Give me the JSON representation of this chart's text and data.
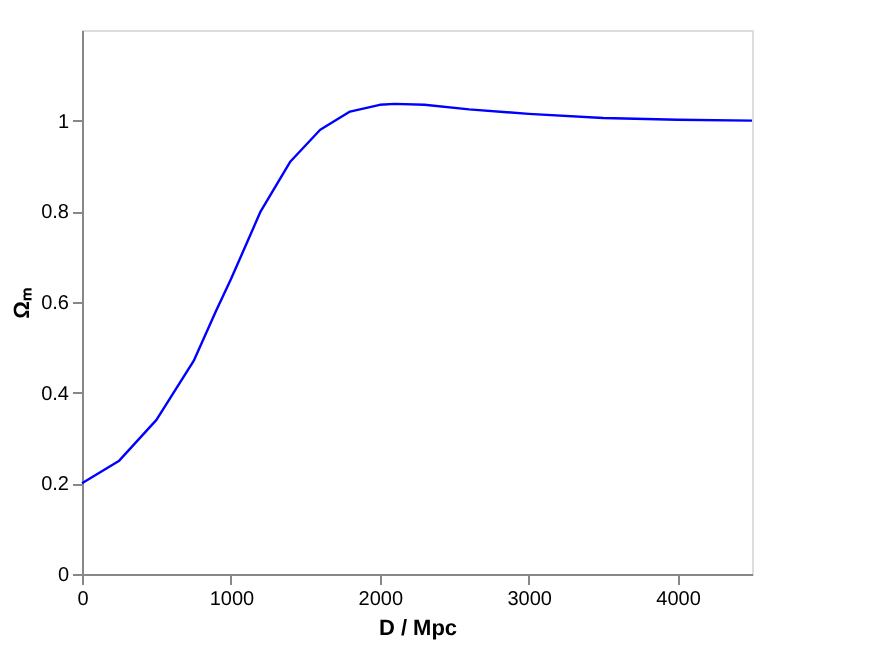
{
  "chart_data": {
    "type": "line",
    "xlabel": "D / Mpc",
    "ylabel": "Ωₘ",
    "x": [
      0,
      250,
      500,
      750,
      900,
      1000,
      1200,
      1400,
      1600,
      1800,
      2000,
      2100,
      2300,
      2600,
      3000,
      3500,
      4000,
      4500
    ],
    "series": [
      {
        "color": "#0000ff",
        "values": [
          0.2,
          0.25,
          0.34,
          0.47,
          0.58,
          0.65,
          0.8,
          0.91,
          0.98,
          1.02,
          1.035,
          1.037,
          1.035,
          1.025,
          1.015,
          1.006,
          1.002,
          1.0
        ]
      }
    ],
    "xlim": [
      0,
      4500
    ],
    "ylim": [
      0,
      1.2
    ],
    "xticks": [
      0,
      1000,
      2000,
      3000,
      4000
    ],
    "yticks": [
      0,
      0.2,
      0.4,
      0.6,
      0.8,
      1
    ],
    "grid": false,
    "legend": false,
    "marker": "none",
    "line_style": "solid"
  }
}
